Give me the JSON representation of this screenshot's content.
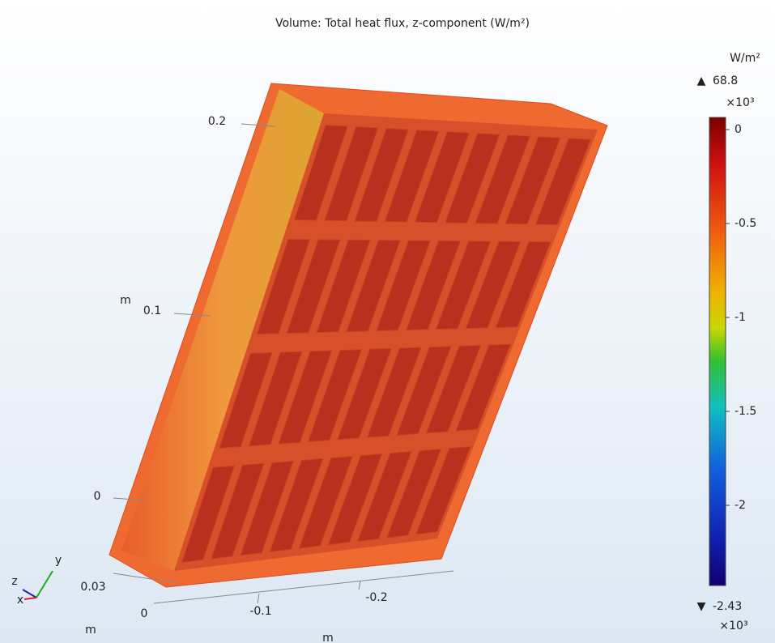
{
  "title": "Volume: Total heat flux, z-component (W/m²)",
  "colorbar": {
    "unit": "W/m²",
    "max": 68.8,
    "min": -2.43,
    "exponent": "×10³",
    "ticks": [
      0,
      -0.5,
      -1,
      -1.5,
      -2
    ]
  },
  "axes": {
    "y_ticks": [
      "0.2",
      "0.1",
      "0"
    ],
    "y_unit": "m",
    "z_ticks": [
      "0.03",
      "0"
    ],
    "z_unit": "m",
    "x_ticks": [
      "-0.1",
      "-0.2"
    ],
    "x_unit": "m",
    "triad": [
      "y",
      "z",
      "x"
    ]
  }
}
